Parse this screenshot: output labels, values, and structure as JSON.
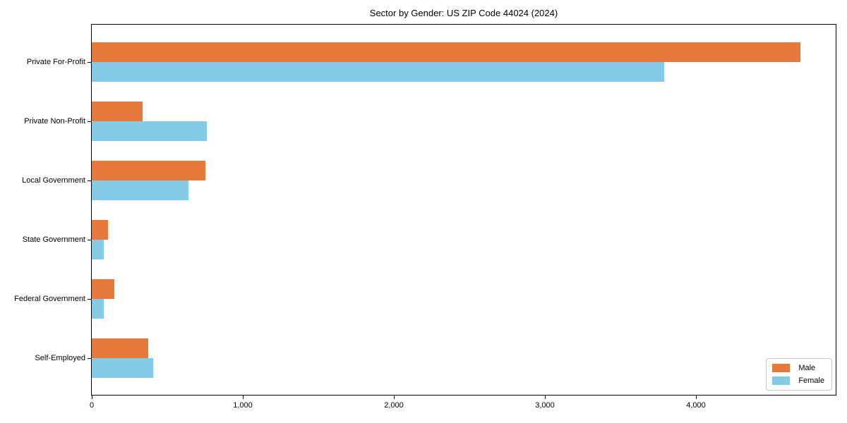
{
  "chart_data": {
    "type": "bar",
    "orientation": "horizontal",
    "title": "Sector by Gender: US ZIP Code 44024 (2024)",
    "categories": [
      "Private For-Profit",
      "Private Non-Profit",
      "Local Government",
      "State Government",
      "Federal Government",
      "Self-Employed"
    ],
    "series": [
      {
        "name": "Male",
        "color": "#e8793d",
        "values": [
          4690,
          335,
          750,
          105,
          150,
          375
        ]
      },
      {
        "name": "Female",
        "color": "#85cbe8",
        "values": [
          3790,
          760,
          640,
          80,
          78,
          405
        ]
      }
    ],
    "xlim": [
      0,
      4925
    ],
    "x_ticks": [
      0,
      1000,
      2000,
      3000,
      4000
    ],
    "x_tick_labels": [
      "0",
      "1,000",
      "2,000",
      "3,000",
      "4,000"
    ],
    "xlabel": "",
    "ylabel": "",
    "grid": false,
    "legend_position": "lower right",
    "colors": {
      "male": "#e8793d",
      "female": "#85cbe8",
      "spine": "#000000",
      "legend_border": "#c9c9c9"
    }
  }
}
